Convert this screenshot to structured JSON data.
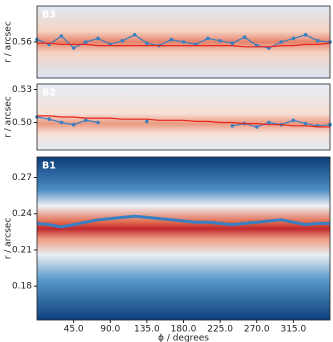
{
  "chart_data": [
    {
      "type": "line",
      "title": "B3",
      "ylabel": "r / arcsec",
      "x": [
        0,
        15,
        30,
        45,
        60,
        75,
        90,
        105,
        120,
        135,
        150,
        165,
        180,
        195,
        210,
        225,
        240,
        255,
        270,
        285,
        300,
        315,
        330,
        345,
        360
      ],
      "series": [
        {
          "color": "#3a7fc1",
          "marker": true,
          "values": [
            0.562,
            0.558,
            0.565,
            0.555,
            0.56,
            0.563,
            0.558,
            0.561,
            0.566,
            0.559,
            0.557,
            0.562,
            0.56,
            0.558,
            0.563,
            0.561,
            0.559,
            0.564,
            0.557,
            0.555,
            0.56,
            0.563,
            0.566,
            0.561,
            0.56
          ]
        },
        {
          "color": "#e8261c",
          "marker": false,
          "values": [
            0.559,
            0.559,
            0.558,
            0.558,
            0.558,
            0.557,
            0.557,
            0.557,
            0.557,
            0.557,
            0.557,
            0.557,
            0.557,
            0.557,
            0.557,
            0.557,
            0.557,
            0.556,
            0.556,
            0.556,
            0.557,
            0.557,
            0.558,
            0.558,
            0.559
          ]
        }
      ],
      "ylim": [
        0.53,
        0.59
      ],
      "yticks": [
        0.56
      ]
    },
    {
      "type": "line",
      "title": "B2",
      "ylabel": "r / arcsec",
      "x": [
        0,
        15,
        30,
        45,
        60,
        75,
        90,
        105,
        120,
        135,
        150,
        165,
        180,
        195,
        210,
        225,
        240,
        255,
        270,
        285,
        300,
        315,
        330,
        345,
        360
      ],
      "series": [
        {
          "color": "#3a7fc1",
          "marker": true,
          "values": [
            0.505,
            0.503,
            0.5,
            0.498,
            0.502,
            0.5,
            null,
            null,
            null,
            0.501,
            null,
            null,
            null,
            null,
            null,
            null,
            0.497,
            0.499,
            0.496,
            0.5,
            0.498,
            0.502,
            0.499,
            0.497,
            0.498
          ]
        },
        {
          "color": "#e8261c",
          "marker": false,
          "values": [
            0.506,
            0.506,
            0.505,
            0.505,
            0.504,
            0.504,
            0.504,
            0.503,
            0.503,
            0.503,
            0.502,
            0.502,
            0.502,
            0.501,
            0.501,
            0.5,
            0.5,
            0.499,
            0.499,
            0.498,
            0.498,
            0.497,
            0.497,
            0.496,
            0.496
          ]
        }
      ],
      "ylim": [
        0.475,
        0.535
      ],
      "yticks": [
        {
          "value": 0.5,
          "label": "0.50"
        },
        0.53
      ]
    },
    {
      "type": "line",
      "title": "B1",
      "ylabel": "r / arcsec",
      "xlabel": "ϕ / degrees",
      "x": [
        0,
        15,
        30,
        45,
        60,
        75,
        90,
        105,
        120,
        135,
        150,
        165,
        180,
        195,
        210,
        225,
        240,
        255,
        270,
        285,
        300,
        315,
        330,
        345,
        360
      ],
      "series": [
        {
          "color": "#3a7fc1",
          "marker": false,
          "values": [
            0.232,
            0.231,
            0.229,
            0.231,
            0.233,
            0.235,
            0.236,
            0.237,
            0.238,
            0.237,
            0.236,
            0.235,
            0.234,
            0.233,
            0.233,
            0.232,
            0.231,
            0.232,
            0.233,
            0.234,
            0.235,
            0.233,
            0.231,
            0.232,
            0.232
          ]
        }
      ],
      "xlim": [
        0,
        360
      ],
      "xticks": [
        {
          "value": 45,
          "label": "45.0"
        },
        {
          "value": 90,
          "label": "90.0"
        },
        {
          "value": 135,
          "label": "135.0"
        },
        {
          "value": 180,
          "label": "180.0"
        },
        {
          "value": 225,
          "label": "225.0"
        },
        {
          "value": 270,
          "label": "270.0"
        },
        {
          "value": 315,
          "label": "315.0"
        }
      ],
      "ylim": [
        0.152,
        0.287
      ],
      "yticks": [
        0.18,
        0.21,
        0.24,
        0.27
      ]
    }
  ]
}
